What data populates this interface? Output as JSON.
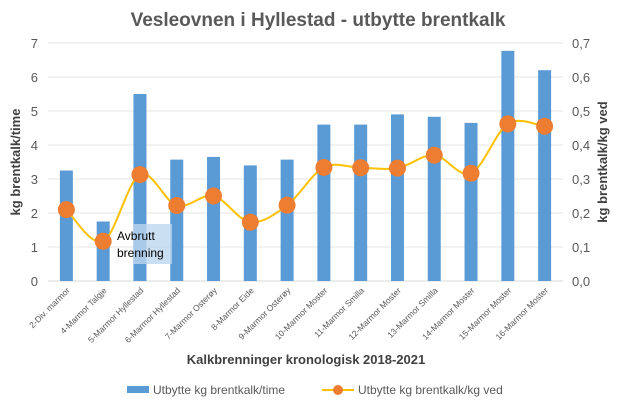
{
  "chart_data": {
    "type": "bar+line",
    "title": "Vesleovnen i Hyllestad - utbytte brentkalk",
    "xlabel": "Kalkbrenninger kronologisk 2018-2021",
    "ylabel": "kg brentkalk/time",
    "y2label": "kg brentkalk/kg ved",
    "ylim": [
      0,
      7
    ],
    "y2lim": [
      0,
      0.7
    ],
    "yticks": [
      "0",
      "1",
      "2",
      "3",
      "4",
      "5",
      "6",
      "7"
    ],
    "y2ticks": [
      "0,0",
      "0,1",
      "0,2",
      "0,3",
      "0,4",
      "0,5",
      "0,6",
      "0,7"
    ],
    "grid": true,
    "legend_position": "bottom",
    "categories": [
      "2-Div. marmor",
      "4-Marmor Talgje",
      "5-Marmor Hyllestad",
      "6-Marmor Hyllestad",
      "7-Marmor Osterøy",
      "8-Marmor Eide",
      "9-Marmor Osterøy",
      "10-Marmor Moster",
      "11-Marmor Smilla",
      "12-Marmor Moster",
      "13-Marmor Smilla",
      "14-Marmor Moster",
      "15-Marmor Moster",
      "16-Marmor Moster"
    ],
    "series": [
      {
        "name": "Utbytte kg brentkalk/time",
        "type": "bar",
        "axis": "left",
        "color": "#5b9bd5",
        "values": [
          3.25,
          1.75,
          5.5,
          3.57,
          3.65,
          3.4,
          3.57,
          4.6,
          4.6,
          4.9,
          4.83,
          4.65,
          6.77,
          6.2
        ]
      },
      {
        "name": "Utbytte kg brentkalk/kg ved",
        "type": "line",
        "axis": "right",
        "color": "#ffc000",
        "marker_color": "#ed7d31",
        "values": [
          0.21,
          0.117,
          0.313,
          0.222,
          0.25,
          0.173,
          0.223,
          0.334,
          0.333,
          0.332,
          0.37,
          0.317,
          0.462,
          0.455
        ]
      }
    ],
    "annotations": [
      {
        "text_line1": "Avbrutt",
        "text_line2": "brenning",
        "category": "4-Marmor Talgje"
      }
    ]
  }
}
